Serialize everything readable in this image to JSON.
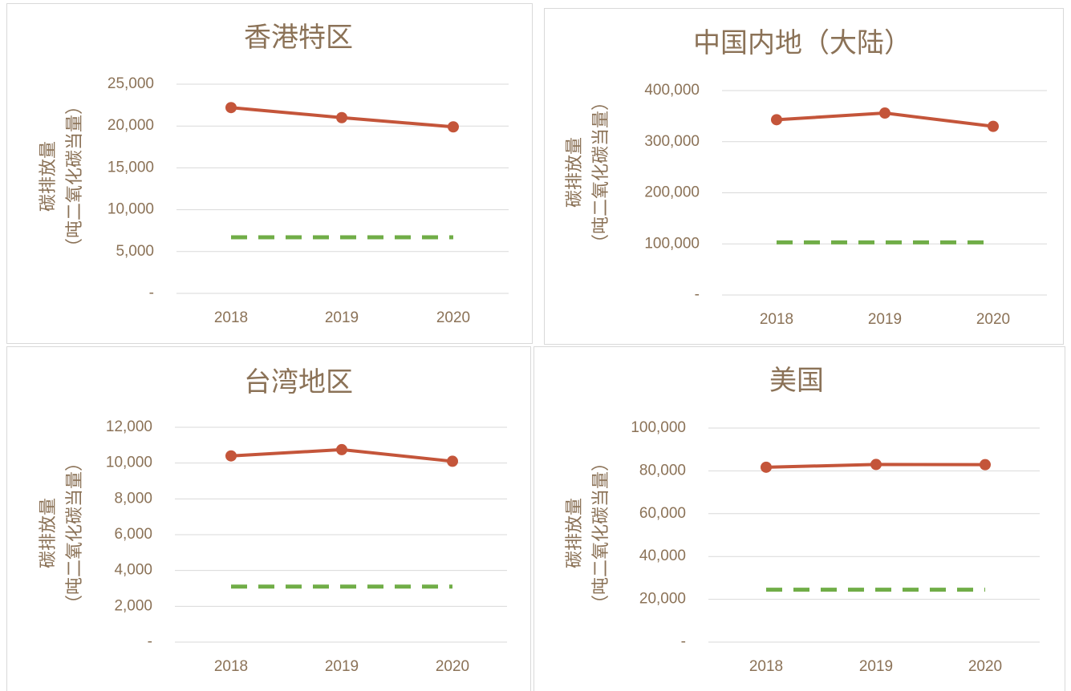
{
  "chart_data": [
    {
      "type": "line",
      "title": "香港特区",
      "y_label": [
        "碳排放量",
        "（吨二氧化碳当量）"
      ],
      "categories": [
        "2018",
        "2019",
        "2020"
      ],
      "series": [
        {
          "color": "#c4553a",
          "line_style": "solid",
          "markers": true,
          "values": [
            22200,
            21000,
            19900
          ]
        },
        {
          "color": "#70ad47",
          "line_style": "dashed",
          "markers": false,
          "values": [
            6700,
            6700,
            6700
          ]
        }
      ],
      "ylim": [
        0,
        25000
      ],
      "yticks": [
        {
          "value": 0,
          "label": "-"
        },
        {
          "value": 5000,
          "label": "5,000"
        },
        {
          "value": 10000,
          "label": "10,000"
        },
        {
          "value": 15000,
          "label": "15,000"
        },
        {
          "value": 20000,
          "label": "20,000"
        },
        {
          "value": 25000,
          "label": "25,000"
        }
      ],
      "grid": true
    },
    {
      "type": "line",
      "title": "中国内地（大陆）",
      "y_label": [
        "碳排放量",
        "（吨二氧化碳当量）"
      ],
      "categories": [
        "2018",
        "2019",
        "2020"
      ],
      "series": [
        {
          "color": "#c4553a",
          "line_style": "solid",
          "markers": true,
          "values": [
            343000,
            356000,
            330000
          ]
        },
        {
          "color": "#70ad47",
          "line_style": "dashed",
          "markers": false,
          "values": [
            103000,
            103000,
            103000
          ]
        }
      ],
      "ylim": [
        0,
        400000
      ],
      "yticks": [
        {
          "value": 0,
          "label": "-"
        },
        {
          "value": 100000,
          "label": "100,000"
        },
        {
          "value": 200000,
          "label": "200,000"
        },
        {
          "value": 300000,
          "label": "300,000"
        },
        {
          "value": 400000,
          "label": "400,000"
        }
      ],
      "grid": true
    },
    {
      "type": "line",
      "title": "台湾地区",
      "y_label": [
        "碳排放量",
        "（吨二氧化碳当量）"
      ],
      "categories": [
        "2018",
        "2019",
        "2020"
      ],
      "series": [
        {
          "color": "#c4553a",
          "line_style": "solid",
          "markers": true,
          "values": [
            10400,
            10750,
            10100
          ]
        },
        {
          "color": "#70ad47",
          "line_style": "dashed",
          "markers": false,
          "values": [
            3100,
            3100,
            3100
          ]
        }
      ],
      "ylim": [
        0,
        12000
      ],
      "yticks": [
        {
          "value": 0,
          "label": "-"
        },
        {
          "value": 2000,
          "label": "2,000"
        },
        {
          "value": 4000,
          "label": "4,000"
        },
        {
          "value": 6000,
          "label": "6,000"
        },
        {
          "value": 8000,
          "label": "8,000"
        },
        {
          "value": 10000,
          "label": "10,000"
        },
        {
          "value": 12000,
          "label": "12,000"
        }
      ],
      "grid": true
    },
    {
      "type": "line",
      "title": "美国",
      "y_label": [
        "碳排放量",
        "（吨二氧化碳当量）"
      ],
      "categories": [
        "2018",
        "2019",
        "2020"
      ],
      "series": [
        {
          "color": "#c4553a",
          "line_style": "solid",
          "markers": true,
          "values": [
            81700,
            83000,
            82900
          ]
        },
        {
          "color": "#70ad47",
          "line_style": "dashed",
          "markers": false,
          "values": [
            24500,
            24500,
            24500
          ]
        }
      ],
      "ylim": [
        0,
        100000
      ],
      "yticks": [
        {
          "value": 0,
          "label": "-"
        },
        {
          "value": 20000,
          "label": "20,000"
        },
        {
          "value": 40000,
          "label": "40,000"
        },
        {
          "value": 60000,
          "label": "60,000"
        },
        {
          "value": 80000,
          "label": "80,000"
        },
        {
          "value": 100000,
          "label": "100,000"
        }
      ],
      "grid": true
    }
  ]
}
